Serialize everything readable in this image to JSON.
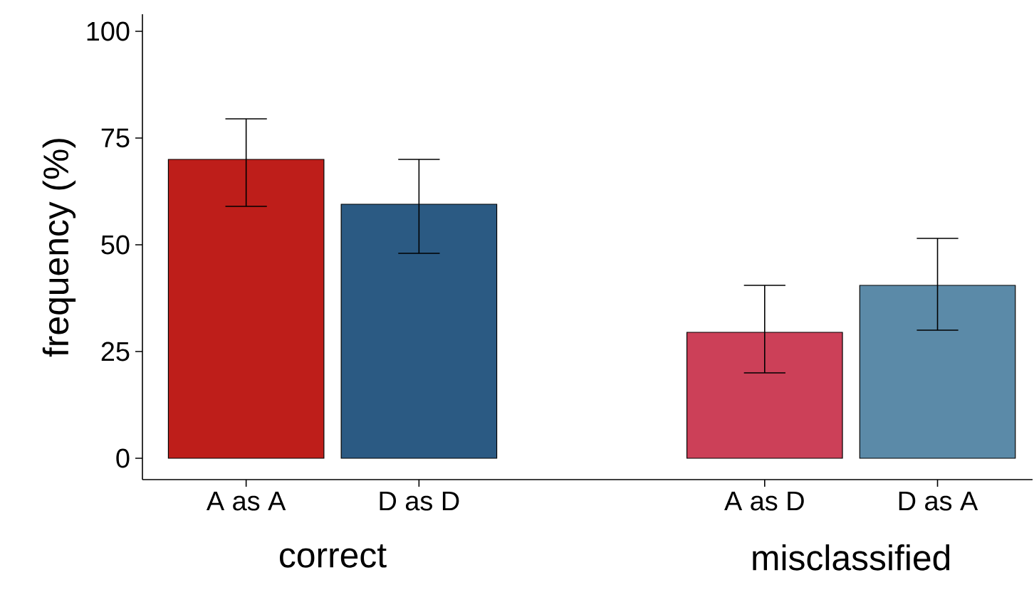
{
  "chart_data": {
    "type": "bar",
    "ylabel": "frequency (%)",
    "categories": [
      "A as A",
      "D as D",
      null,
      "A as D",
      "D as A"
    ],
    "values": [
      70,
      59.5,
      null,
      29.5,
      40.5
    ],
    "colors": [
      "#be1e1a",
      "#2b5a83",
      null,
      "#cc4058",
      "#5b8aa8"
    ],
    "errors": [
      [
        59,
        79.5
      ],
      [
        48,
        70
      ],
      null,
      [
        20,
        40.5
      ],
      [
        30,
        51.5
      ]
    ],
    "ylim": [
      -5,
      104
    ],
    "yticks": [
      0,
      25,
      50,
      75,
      100
    ],
    "annotations": [
      "correct",
      "misclassified"
    ],
    "grid": false
  }
}
